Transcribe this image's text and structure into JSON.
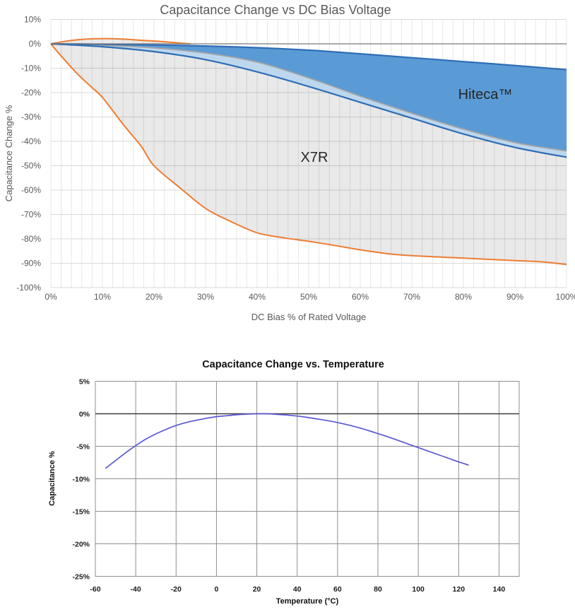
{
  "chart_data": [
    {
      "type": "area",
      "title": "Capacitance Change vs DC Bias Voltage",
      "xlabel": "DC Bias % of Rated Voltage",
      "ylabel": "Capacitance Change %",
      "xlim": [
        0,
        100
      ],
      "ylim": [
        -100,
        10
      ],
      "legend_position": "none",
      "grid": true,
      "x_ticks": [
        {
          "v": 0,
          "label": "0%"
        },
        {
          "v": 10,
          "label": "10%"
        },
        {
          "v": 20,
          "label": "20%"
        },
        {
          "v": 30,
          "label": "30%"
        },
        {
          "v": 40,
          "label": "40%"
        },
        {
          "v": 50,
          "label": "50%"
        },
        {
          "v": 60,
          "label": "60%"
        },
        {
          "v": 70,
          "label": "70%"
        },
        {
          "v": 80,
          "label": "80%"
        },
        {
          "v": 90,
          "label": "90%"
        },
        {
          "v": 100,
          "label": "100%"
        }
      ],
      "y_ticks": [
        {
          "v": 10,
          "label": "10%"
        },
        {
          "v": 0,
          "label": "0%"
        },
        {
          "v": -10,
          "label": "-10%"
        },
        {
          "v": -20,
          "label": "-20%"
        },
        {
          "v": -30,
          "label": "-30%"
        },
        {
          "v": -40,
          "label": "-40%"
        },
        {
          "v": -50,
          "label": "-50%"
        },
        {
          "v": -60,
          "label": "-60%"
        },
        {
          "v": -70,
          "label": "-70%"
        },
        {
          "v": -80,
          "label": "-80%"
        },
        {
          "v": -90,
          "label": "-90%"
        },
        {
          "v": -100,
          "label": "-100%"
        }
      ],
      "annotations": [
        {
          "text": "Hiteca™",
          "x": 84,
          "y": -21
        },
        {
          "text": "X7R",
          "x": 51,
          "y": -47
        }
      ],
      "colors": {
        "hiteca_fill": "#5b9bd5",
        "overlap_fill": "#bdd7ee",
        "x7r_fill": "rgba(0,0,0,0.085)",
        "blue_stroke": "#2e6db5",
        "gray_stroke": "#a6a6a6",
        "orange_stroke": "#ed7d31"
      },
      "series": {
        "hiteca_max": {
          "points": [
            [
              0,
              0
            ],
            [
              10,
              -0.2
            ],
            [
              20,
              -0.5
            ],
            [
              30,
              -0.9
            ],
            [
              40,
              -1.6
            ],
            [
              50,
              -2.6
            ],
            [
              60,
              -4.1
            ],
            [
              70,
              -5.7
            ],
            [
              80,
              -7.3
            ],
            [
              90,
              -8.9
            ],
            [
              100,
              -10.6
            ]
          ]
        },
        "x7r_max_inner": {
          "points": [
            [
              0,
              0
            ],
            [
              10,
              -0.6
            ],
            [
              20,
              -1.7
            ],
            [
              30,
              -3.8
            ],
            [
              40,
              -7.5
            ],
            [
              50,
              -14
            ],
            [
              60,
              -21.5
            ],
            [
              70,
              -28.5
            ],
            [
              80,
              -35
            ],
            [
              90,
              -40.5
            ],
            [
              100,
              -44
            ]
          ]
        },
        "hiteca_min": {
          "points": [
            [
              0,
              0
            ],
            [
              10,
              -1.2
            ],
            [
              20,
              -3.2
            ],
            [
              30,
              -6.5
            ],
            [
              40,
              -11.5
            ],
            [
              50,
              -17.5
            ],
            [
              60,
              -24
            ],
            [
              70,
              -30.5
            ],
            [
              80,
              -37
            ],
            [
              90,
              -42.5
            ],
            [
              100,
              -46.5
            ]
          ]
        },
        "x7r_max": {
          "points": [
            [
              0,
              0
            ],
            [
              3,
              1.1
            ],
            [
              6,
              1.8
            ],
            [
              9,
              2.1
            ],
            [
              12,
              2.1
            ],
            [
              15,
              1.8
            ],
            [
              18,
              1.4
            ],
            [
              21,
              1.0
            ],
            [
              24,
              0.5
            ],
            [
              27,
              0
            ],
            [
              30,
              -1.3
            ],
            [
              33,
              -2.8
            ],
            [
              36,
              -4.6
            ],
            [
              40,
              -7.5
            ],
            [
              50,
              -14
            ],
            [
              60,
              -21.5
            ],
            [
              70,
              -28.5
            ],
            [
              80,
              -35
            ],
            [
              90,
              -40.5
            ],
            [
              100,
              -44
            ]
          ],
          "stroke_clip_x": 28
        },
        "x7r_min": {
          "points": [
            [
              0,
              0
            ],
            [
              2,
              -5
            ],
            [
              5,
              -12
            ],
            [
              8,
              -18
            ],
            [
              10,
              -22
            ],
            [
              14,
              -33
            ],
            [
              17.5,
              -42
            ],
            [
              20,
              -50
            ],
            [
              25,
              -59
            ],
            [
              30,
              -67.5
            ],
            [
              35,
              -73
            ],
            [
              40,
              -77.5
            ],
            [
              45,
              -79.5
            ],
            [
              50,
              -81
            ],
            [
              55,
              -82.7
            ],
            [
              60,
              -84.5
            ],
            [
              65,
              -86
            ],
            [
              70,
              -86.9
            ],
            [
              75,
              -87.4
            ],
            [
              80,
              -87.9
            ],
            [
              85,
              -88.4
            ],
            [
              90,
              -88.9
            ],
            [
              95,
              -89.4
            ],
            [
              100,
              -90.5
            ]
          ]
        }
      }
    },
    {
      "type": "line",
      "title": "Capacitance Change vs. Temperature",
      "xlabel": "Temperature (°C)",
      "ylabel": "Capacitance %",
      "xlim": [
        -60,
        150
      ],
      "ylim": [
        -25,
        5
      ],
      "legend_position": "none",
      "grid": true,
      "x_ticks": [
        {
          "v": -60,
          "label": "-60"
        },
        {
          "v": -40,
          "label": "-40"
        },
        {
          "v": -20,
          "label": "-20"
        },
        {
          "v": 0,
          "label": "0"
        },
        {
          "v": 20,
          "label": "20"
        },
        {
          "v": 40,
          "label": "40"
        },
        {
          "v": 60,
          "label": "60"
        },
        {
          "v": 80,
          "label": "80"
        },
        {
          "v": 100,
          "label": "100"
        },
        {
          "v": 120,
          "label": "120"
        },
        {
          "v": 140,
          "label": "140"
        }
      ],
      "y_ticks": [
        {
          "v": 5,
          "label": "5%"
        },
        {
          "v": 0,
          "label": "0%"
        },
        {
          "v": -5,
          "label": "-5%"
        },
        {
          "v": -10,
          "label": "-10%"
        },
        {
          "v": -15,
          "label": "-15%"
        },
        {
          "v": -20,
          "label": "-20%"
        },
        {
          "v": -25,
          "label": "-25%"
        }
      ],
      "colors": {
        "line": "#5a58d2",
        "grid": "#8f8f8f",
        "zero_axis": "#3d3d3d"
      },
      "series": {
        "capacitance_vs_temperature": {
          "points": [
            [
              -55,
              -8.4
            ],
            [
              -50,
              -7.2
            ],
            [
              -45,
              -6.0
            ],
            [
              -40,
              -4.9
            ],
            [
              -35,
              -3.9
            ],
            [
              -30,
              -3.1
            ],
            [
              -25,
              -2.4
            ],
            [
              -20,
              -1.8
            ],
            [
              -15,
              -1.35
            ],
            [
              -10,
              -1.0
            ],
            [
              -5,
              -0.7
            ],
            [
              0,
              -0.45
            ],
            [
              5,
              -0.3
            ],
            [
              10,
              -0.15
            ],
            [
              15,
              -0.05
            ],
            [
              20,
              0
            ],
            [
              25,
              0
            ],
            [
              30,
              -0.1
            ],
            [
              35,
              -0.2
            ],
            [
              40,
              -0.35
            ],
            [
              45,
              -0.55
            ],
            [
              50,
              -0.8
            ],
            [
              55,
              -1.05
            ],
            [
              60,
              -1.35
            ],
            [
              65,
              -1.7
            ],
            [
              70,
              -2.1
            ],
            [
              75,
              -2.55
            ],
            [
              80,
              -3.05
            ],
            [
              85,
              -3.55
            ],
            [
              90,
              -4.1
            ],
            [
              95,
              -4.65
            ],
            [
              100,
              -5.2
            ],
            [
              105,
              -5.75
            ],
            [
              110,
              -6.3
            ],
            [
              115,
              -6.85
            ],
            [
              120,
              -7.4
            ],
            [
              125,
              -7.9
            ]
          ]
        }
      }
    }
  ]
}
